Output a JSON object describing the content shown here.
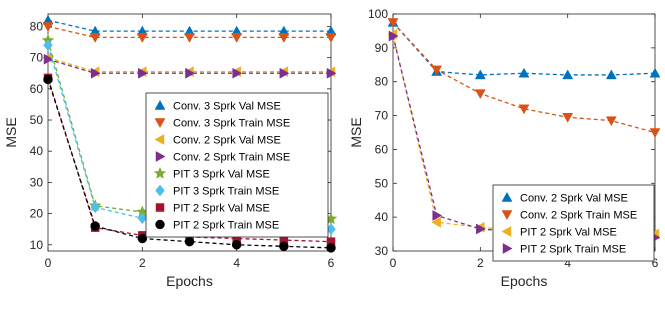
{
  "chart_data": [
    {
      "type": "line",
      "xlabel": "Epochs",
      "ylabel": "MSE",
      "xlim": [
        0,
        6
      ],
      "ylim": [
        8,
        84
      ],
      "xticks": [
        0,
        2,
        4,
        6
      ],
      "yticks": [
        10,
        20,
        30,
        40,
        50,
        60,
        70,
        80
      ],
      "grid": false,
      "legend_position": "right",
      "x": [
        0,
        1,
        2,
        3,
        4,
        5,
        6
      ],
      "series": [
        {
          "name": "Conv. 3 Sprk Val MSE",
          "color": "#0072BD",
          "marker": "triangle-up",
          "values": [
            82.0,
            78.5,
            78.5,
            78.5,
            78.5,
            78.5,
            78.5
          ]
        },
        {
          "name": "Conv. 3 Sprk Train MSE",
          "color": "#D95319",
          "marker": "triangle-down",
          "values": [
            80.0,
            76.5,
            76.5,
            76.5,
            76.5,
            76.5,
            76.5
          ]
        },
        {
          "name": "Conv. 2 Sprk Val MSE",
          "color": "#EDB120",
          "marker": "triangle-left",
          "values": [
            70.0,
            65.5,
            65.5,
            65.5,
            65.5,
            65.5,
            65.5
          ]
        },
        {
          "name": "Conv. 2 Sprk Train MSE",
          "color": "#7E2F8E",
          "marker": "triangle-right",
          "values": [
            69.5,
            65.0,
            65.0,
            65.0,
            65.0,
            65.0,
            65.0
          ]
        },
        {
          "name": "PIT 3 Sprk Val MSE",
          "color": "#77AC30",
          "marker": "star",
          "values": [
            75.5,
            22.5,
            20.5,
            19.5,
            19.0,
            18.5,
            18.3
          ]
        },
        {
          "name": "PIT 3 Sprk Train MSE",
          "color": "#4DBEEE",
          "marker": "diamond",
          "values": [
            74.0,
            22.0,
            18.5,
            17.0,
            16.0,
            15.5,
            15.0
          ]
        },
        {
          "name": "PIT 2 Sprk Val MSE",
          "color": "#A2142F",
          "marker": "square",
          "values": [
            63.5,
            15.5,
            13.0,
            12.5,
            12.0,
            11.5,
            11.0
          ]
        },
        {
          "name": "PIT 2 Sprk Train MSE",
          "color": "#000000",
          "marker": "circle",
          "values": [
            63.0,
            16.0,
            12.0,
            11.0,
            10.0,
            9.5,
            9.0
          ]
        }
      ]
    },
    {
      "type": "line",
      "xlabel": "Epochs",
      "ylabel": "MSE",
      "xlim": [
        0,
        6
      ],
      "ylim": [
        30,
        100
      ],
      "xticks": [
        0,
        2,
        4,
        6
      ],
      "yticks": [
        30,
        40,
        50,
        60,
        70,
        80,
        90,
        100
      ],
      "grid": false,
      "legend_position": "center-right",
      "x": [
        0,
        1,
        2,
        3,
        4,
        5,
        6
      ],
      "series": [
        {
          "name": "Conv. 2 Sprk Val MSE",
          "color": "#0072BD",
          "marker": "triangle-up",
          "values": [
            97.5,
            83.0,
            82.0,
            82.5,
            82.0,
            82.0,
            82.5
          ]
        },
        {
          "name": "Conv. 2 Sprk Train MSE",
          "color": "#D95319",
          "marker": "triangle-down",
          "values": [
            97.5,
            83.5,
            76.5,
            72.0,
            69.5,
            68.5,
            65.0
          ]
        },
        {
          "name": "PIT 2 Sprk Val MSE",
          "color": "#EDB120",
          "marker": "triangle-left",
          "values": [
            94.0,
            38.5,
            37.0,
            36.0,
            35.5,
            35.0,
            35.0
          ]
        },
        {
          "name": "PIT 2 Sprk Train MSE",
          "color": "#7E2F8E",
          "marker": "triangle-right",
          "values": [
            93.5,
            40.5,
            36.5,
            35.5,
            35.0,
            34.5,
            34.0
          ]
        }
      ]
    }
  ]
}
